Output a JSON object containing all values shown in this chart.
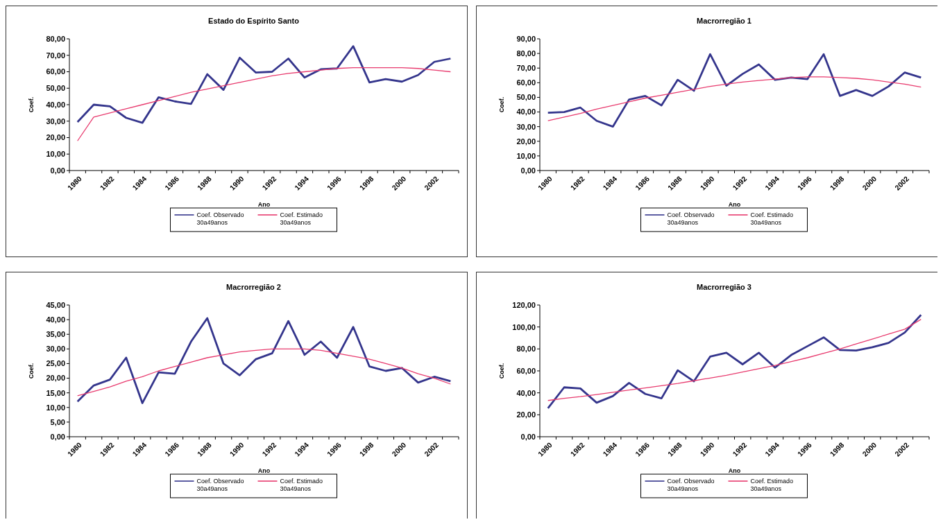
{
  "chart_data": [
    {
      "type": "line",
      "title": "Estado do Espírito Santo",
      "xlabel": "Ano",
      "ylabel": "Coef.",
      "categories": [
        "1980",
        null,
        "1982",
        null,
        "1984",
        null,
        "1986",
        null,
        "1988",
        null,
        "1990",
        null,
        "1992",
        null,
        "1994",
        null,
        "1996",
        null,
        "1998",
        null,
        "2000",
        null,
        "2002",
        null
      ],
      "ylim": [
        0,
        80
      ],
      "yticks": [
        {
          "value": 0,
          "label": "0,00"
        },
        {
          "value": 10,
          "label": "10,00"
        },
        {
          "value": 20,
          "label": "20,00"
        },
        {
          "value": 30,
          "label": "30,00"
        },
        {
          "value": 40,
          "label": "40,00"
        },
        {
          "value": 50,
          "label": "50,00"
        },
        {
          "value": 60,
          "label": "60,00"
        },
        {
          "value": 70,
          "label": "70,00"
        },
        {
          "value": 80,
          "label": "80,00"
        }
      ],
      "legend": "bottom",
      "series": [
        {
          "name": "Coef. Observado 30a49anos",
          "color": "#34358c",
          "values": [
            29.5,
            40,
            39,
            32,
            29,
            44.5,
            42,
            40.5,
            58.5,
            49,
            68.5,
            59.5,
            60,
            68,
            56.5,
            61.5,
            62,
            75.5,
            53.5,
            55.5,
            54,
            58,
            66,
            68
          ]
        },
        {
          "name": "Coef. Estimado 30a49anos",
          "color": "#e83a6e",
          "values": [
            18,
            32.5,
            35,
            37.5,
            40,
            42.5,
            45,
            47.5,
            49.5,
            51.5,
            53.5,
            55.5,
            57.5,
            59,
            60,
            61,
            62,
            62.5,
            62.5,
            62.5,
            62.5,
            62,
            61,
            60
          ]
        }
      ]
    },
    {
      "type": "line",
      "title": "Macrorregião 1",
      "xlabel": "Ano",
      "ylabel": "Coef.",
      "categories": [
        "1980",
        null,
        "1982",
        null,
        "1984",
        null,
        "1986",
        null,
        "1988",
        null,
        "1990",
        null,
        "1992",
        null,
        "1994",
        null,
        "1996",
        null,
        "1998",
        null,
        "2000",
        null,
        "2002",
        null
      ],
      "ylim": [
        0,
        90
      ],
      "yticks": [
        {
          "value": 0,
          "label": "0,00"
        },
        {
          "value": 10,
          "label": "10,00"
        },
        {
          "value": 20,
          "label": "20,00"
        },
        {
          "value": 30,
          "label": "30,00"
        },
        {
          "value": 40,
          "label": "40,00"
        },
        {
          "value": 50,
          "label": "50,00"
        },
        {
          "value": 60,
          "label": "60,00"
        },
        {
          "value": 70,
          "label": "70,00"
        },
        {
          "value": 80,
          "label": "80,00"
        },
        {
          "value": 90,
          "label": "90,00"
        }
      ],
      "legend": "bottom",
      "series": [
        {
          "name": "Coef. Observado 30a49anos",
          "color": "#34358c",
          "values": [
            39.5,
            40,
            43,
            34,
            30,
            48.5,
            51,
            44.5,
            62,
            54.5,
            79.5,
            58,
            66,
            72.5,
            62,
            63.5,
            62.5,
            79.5,
            51,
            55,
            51,
            57.5,
            67,
            63.5
          ]
        },
        {
          "name": "Coef. Estimado 30a49anos",
          "color": "#e83a6e",
          "values": [
            34,
            36.5,
            39,
            42,
            44.5,
            47,
            49.5,
            51.5,
            53.5,
            55.5,
            57.5,
            59,
            60.5,
            61.5,
            62.5,
            63.5,
            64,
            64,
            63.5,
            63,
            62,
            60.5,
            59,
            57
          ]
        }
      ]
    },
    {
      "type": "line",
      "title": "Macrorregião 2",
      "xlabel": "Ano",
      "ylabel": "Coef.",
      "categories": [
        "1980",
        null,
        "1982",
        null,
        "1984",
        null,
        "1986",
        null,
        "1988",
        null,
        "1990",
        null,
        "1992",
        null,
        "1994",
        null,
        "1996",
        null,
        "1998",
        null,
        "2000",
        null,
        "2002",
        null
      ],
      "ylim": [
        0,
        45
      ],
      "yticks": [
        {
          "value": 0,
          "label": "0,00"
        },
        {
          "value": 5,
          "label": "5,00"
        },
        {
          "value": 10,
          "label": "10,00"
        },
        {
          "value": 15,
          "label": "15,00"
        },
        {
          "value": 20,
          "label": "20,00"
        },
        {
          "value": 25,
          "label": "25,00"
        },
        {
          "value": 30,
          "label": "30,00"
        },
        {
          "value": 35,
          "label": "35,00"
        },
        {
          "value": 40,
          "label": "40,00"
        },
        {
          "value": 45,
          "label": "45,00"
        }
      ],
      "legend": "bottom",
      "series": [
        {
          "name": "Coef. Observado 30a49anos",
          "color": "#34358c",
          "values": [
            12,
            17.5,
            19.5,
            27,
            11.5,
            22,
            21.5,
            32.5,
            40.5,
            25,
            21,
            26.5,
            28.5,
            39.5,
            28,
            32.5,
            27,
            37.5,
            24,
            22.5,
            23.5,
            18.5,
            20.5,
            19
          ]
        },
        {
          "name": "Coef. Estimado 30a49anos",
          "color": "#e83a6e",
          "values": [
            14,
            15.5,
            17,
            19,
            20.5,
            22.5,
            24,
            25.5,
            27,
            28,
            29,
            29.5,
            30,
            30,
            30,
            29.5,
            28.5,
            27.5,
            26.5,
            25,
            23.5,
            21.5,
            20,
            18
          ]
        }
      ]
    },
    {
      "type": "line",
      "title": "Macrorregião 3",
      "xlabel": "Ano",
      "ylabel": "Coef.",
      "categories": [
        "1980",
        null,
        "1982",
        null,
        "1984",
        null,
        "1986",
        null,
        "1988",
        null,
        "1990",
        null,
        "1992",
        null,
        "1994",
        null,
        "1996",
        null,
        "1998",
        null,
        "2000",
        null,
        "2002",
        null
      ],
      "ylim": [
        0,
        120
      ],
      "yticks": [
        {
          "value": 0,
          "label": "0,00"
        },
        {
          "value": 20,
          "label": "20,00"
        },
        {
          "value": 40,
          "label": "40,00"
        },
        {
          "value": 60,
          "label": "60,00"
        },
        {
          "value": 80,
          "label": "80,00"
        },
        {
          "value": 100,
          "label": "100,00"
        },
        {
          "value": 120,
          "label": "120,00"
        }
      ],
      "legend": "bottom",
      "series": [
        {
          "name": "Coef. Observado 30a49anos",
          "color": "#34358c",
          "values": [
            26,
            45,
            44,
            31,
            37,
            49,
            39,
            35,
            60.5,
            50.5,
            73,
            76.5,
            66,
            76.5,
            63,
            74.5,
            82.5,
            90.5,
            79,
            78.5,
            81.5,
            85.5,
            95,
            111
          ]
        },
        {
          "name": "Coef. Estimado 30a49anos",
          "color": "#e83a6e",
          "values": [
            33,
            35,
            36.5,
            38.5,
            40.5,
            42.5,
            44.5,
            46.5,
            48.5,
            51,
            53.5,
            56,
            59,
            62,
            65,
            68.5,
            72,
            76,
            80,
            84.5,
            89,
            93.5,
            98,
            107
          ]
        }
      ]
    }
  ]
}
